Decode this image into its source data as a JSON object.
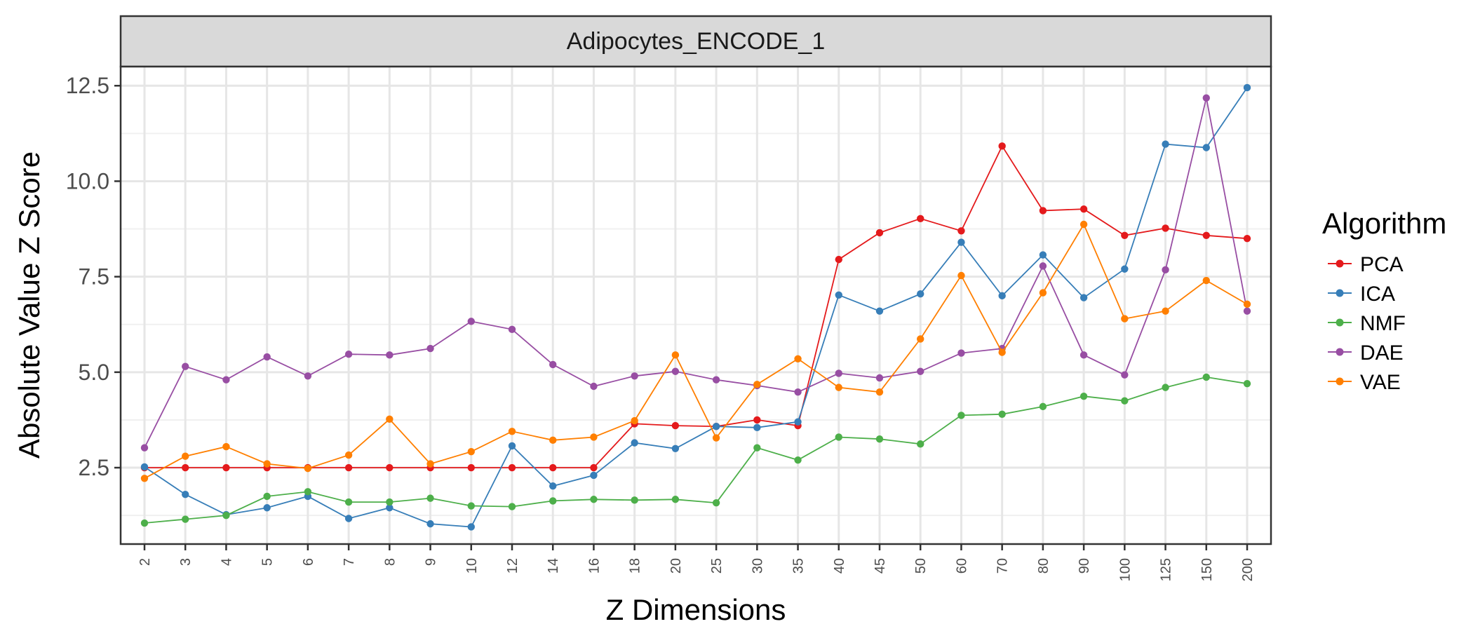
{
  "chart_data": {
    "type": "line",
    "facet_title": "Adipocytes_ENCODE_1",
    "xlabel": "Z Dimensions",
    "ylabel": "Absolute Value Z Score",
    "categories": [
      "2",
      "3",
      "4",
      "5",
      "6",
      "7",
      "8",
      "9",
      "10",
      "12",
      "14",
      "16",
      "18",
      "20",
      "25",
      "30",
      "35",
      "40",
      "45",
      "50",
      "60",
      "70",
      "80",
      "90",
      "100",
      "125",
      "150",
      "200"
    ],
    "ylim": [
      0.5,
      13.0
    ],
    "yticks": [
      2.5,
      5.0,
      7.5,
      10.0,
      12.5
    ],
    "ytick_labels": [
      "2.5",
      "5.0",
      "7.5",
      "10.0",
      "12.5"
    ],
    "grid": true,
    "legend_title": "Algorithm",
    "legend_position": "right",
    "series": [
      {
        "name": "PCA",
        "color": "#e41a1c",
        "values": [
          2.5,
          2.5,
          2.5,
          2.5,
          2.5,
          2.5,
          2.5,
          2.5,
          2.5,
          2.5,
          2.5,
          2.5,
          3.65,
          3.6,
          3.58,
          3.75,
          3.6,
          7.95,
          8.65,
          9.02,
          8.7,
          10.92,
          9.23,
          9.27,
          8.58,
          8.77,
          8.58,
          8.5
        ]
      },
      {
        "name": "ICA",
        "color": "#377eb8",
        "values": [
          2.52,
          1.8,
          1.27,
          1.45,
          1.75,
          1.17,
          1.45,
          1.03,
          0.95,
          3.07,
          2.02,
          2.3,
          3.15,
          3.0,
          3.58,
          3.55,
          3.7,
          7.02,
          6.6,
          7.05,
          8.4,
          7.0,
          8.07,
          6.95,
          7.7,
          10.97,
          10.88,
          12.45
        ]
      },
      {
        "name": "NMF",
        "color": "#4daf4a",
        "values": [
          1.05,
          1.15,
          1.25,
          1.75,
          1.87,
          1.6,
          1.6,
          1.7,
          1.5,
          1.48,
          1.63,
          1.67,
          1.65,
          1.67,
          1.58,
          3.02,
          2.7,
          3.3,
          3.25,
          3.12,
          3.87,
          3.9,
          4.1,
          4.37,
          4.25,
          4.6,
          4.87,
          4.7
        ]
      },
      {
        "name": "DAE",
        "color": "#984ea3",
        "values": [
          3.02,
          5.15,
          4.8,
          5.4,
          4.9,
          5.47,
          5.45,
          5.62,
          6.33,
          6.12,
          5.2,
          4.63,
          4.9,
          5.02,
          4.8,
          4.65,
          4.48,
          4.97,
          4.85,
          5.02,
          5.5,
          5.62,
          7.78,
          5.45,
          4.93,
          7.68,
          12.18,
          6.6
        ]
      },
      {
        "name": "VAE",
        "color": "#ff7f00",
        "values": [
          2.22,
          2.8,
          3.05,
          2.6,
          2.48,
          2.83,
          3.77,
          2.6,
          2.92,
          3.45,
          3.22,
          3.3,
          3.73,
          5.45,
          3.28,
          4.68,
          5.35,
          4.6,
          4.48,
          5.87,
          7.53,
          5.52,
          7.08,
          8.87,
          6.4,
          6.6,
          7.4,
          6.78
        ]
      }
    ]
  }
}
